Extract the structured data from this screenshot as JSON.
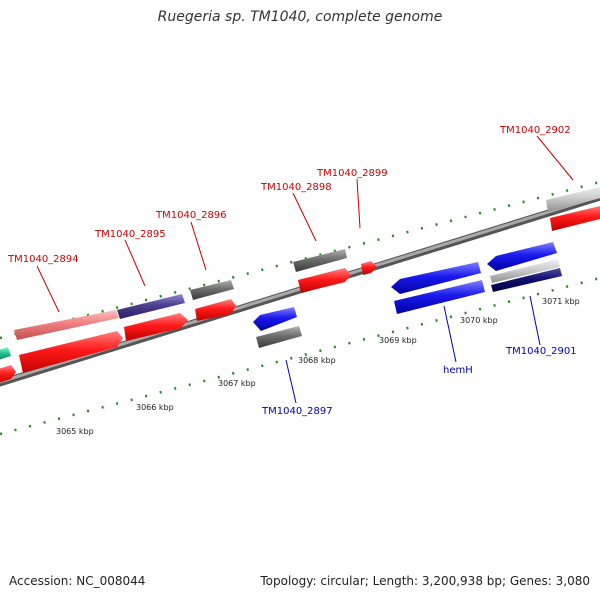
{
  "title": "Ruegeria sp. TM1040, complete genome",
  "footer": {
    "accession": "Accession: NC_008044",
    "summary": "Topology: circular; Length: 3,200,938 bp; Genes: 3,080"
  },
  "colors": {
    "backbone": "#808080",
    "tick": "#1f8a1f",
    "forward_label": "#cc0000",
    "reverse_label": "#0000bb",
    "red_gene": "#ff1a1a",
    "blue_gene": "#1a1aee",
    "grey_gene": "#6e6e6e",
    "pink_gene": "#f08080",
    "purple_gene": "#4b4090",
    "teal_gene": "#20c090",
    "navy_gene": "#101070",
    "light_grey_gene": "#cccccc"
  },
  "kbp_labels": [
    "3065 kbp",
    "3066 kbp",
    "3067 kbp",
    "3068 kbp",
    "3069 kbp",
    "3070 kbp",
    "3071 kbp"
  ],
  "forward_labels": [
    "TM1040_2894",
    "TM1040_2895",
    "TM1040_2896",
    "TM1040_2898",
    "TM1040_2899",
    "TM1040_2902"
  ],
  "reverse_labels": [
    "TM1040_2897",
    "hemH",
    "TM1040_2901"
  ]
}
